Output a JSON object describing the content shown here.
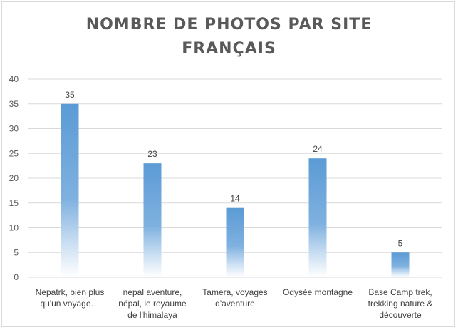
{
  "chart_data": {
    "type": "bar",
    "title_lines": [
      "NOMBRE DE PHOTOS PAR SITE",
      "FRANÇAIS"
    ],
    "categories": [
      [
        "Nepatrk, bien plus",
        "qu'un voyage…"
      ],
      [
        "nepal aventure,",
        "népal, le royaume",
        "de l'himalaya"
      ],
      [
        "Tamera,  voyages",
        "d'aventure"
      ],
      [
        "Odysée montagne"
      ],
      [
        "Base Camp trek,",
        "trekking nature &",
        "découverte"
      ]
    ],
    "values": [
      35,
      23,
      14,
      24,
      5
    ],
    "data_labels": [
      "35",
      "23",
      "14",
      "24",
      "5"
    ],
    "ylim": [
      0,
      40
    ],
    "yticks": [
      0,
      5,
      10,
      15,
      20,
      25,
      30,
      35,
      40
    ],
    "grid": true,
    "colors": {
      "bar": "#5b9bd5",
      "grid": "#d9d9d9",
      "text": "#595959"
    }
  }
}
